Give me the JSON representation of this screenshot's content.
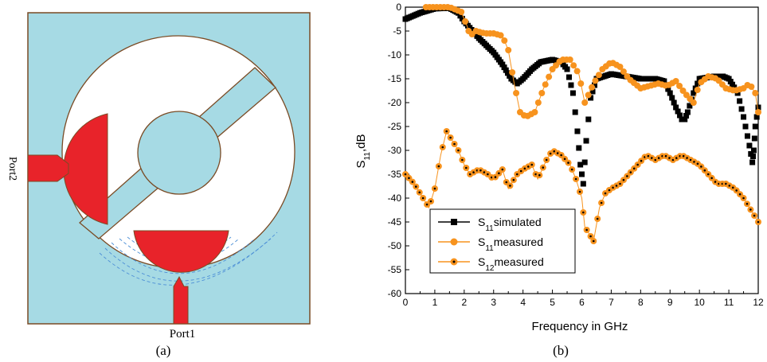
{
  "panel_a": {
    "caption": "(a)",
    "port1_label": "Port1",
    "port2_label": "Port2",
    "colors": {
      "substrate": "#a6dae4",
      "slot": "#ffffff",
      "patch": "#e8232a",
      "outline": "#7a4b25",
      "field_lines": "#4d8fd6"
    }
  },
  "panel_b": {
    "caption": "(b)"
  },
  "chart_data": {
    "type": "scatter",
    "xlabel": "Frequency in GHz",
    "ylabel": "S",
    "ylabel_sub": "11",
    "ylabel_suffix": ",dB",
    "xlim": [
      0,
      12
    ],
    "ylim": [
      -60,
      0
    ],
    "xticks": [
      0,
      1,
      2,
      3,
      4,
      5,
      6,
      7,
      8,
      9,
      10,
      11,
      12
    ],
    "yticks": [
      0,
      -5,
      -10,
      -15,
      -20,
      -25,
      -30,
      -35,
      -40,
      -45,
      -50,
      -55,
      -60
    ],
    "grid": false,
    "legend_position": "bottom-left",
    "series": [
      {
        "name": "S11simulated",
        "label_main": "S",
        "label_sub": "11",
        "label_rest": "simulated",
        "color": "#000000",
        "marker": "square",
        "line": false,
        "x": [
          0,
          0.5,
          1,
          1.5,
          1.8,
          2,
          2.5,
          3,
          3.3,
          3.6,
          3.8,
          4,
          4.3,
          4.6,
          5,
          5.3,
          5.5,
          5.7,
          5.85,
          5.95,
          6.05,
          6.15,
          6.3,
          6.5,
          7,
          7.5,
          8,
          8.5,
          8.8,
          9,
          9.2,
          9.4,
          9.5,
          9.6,
          9.8,
          10,
          10.5,
          10.8,
          11,
          11.3,
          11.5,
          11.7,
          11.8,
          11.85,
          11.9,
          12
        ],
        "y": [
          -2.5,
          -1.2,
          -0.3,
          -0.2,
          -1.2,
          -3,
          -6.5,
          -9.5,
          -12,
          -15,
          -16,
          -15,
          -13,
          -11.5,
          -11,
          -11.5,
          -13,
          -18,
          -26,
          -33,
          -37,
          -28,
          -19,
          -15,
          -14,
          -14.5,
          -15,
          -15,
          -15.5,
          -18,
          -21,
          -23.5,
          -23.5,
          -22,
          -18,
          -15,
          -14.5,
          -14.5,
          -15,
          -18,
          -23,
          -29,
          -32.5,
          -30,
          -25,
          -21
        ]
      },
      {
        "name": "S11measured",
        "label_main": "S",
        "label_sub": "11",
        "label_rest": "measured",
        "color": "#f7931e",
        "marker": "circle",
        "line": true,
        "x": [
          0.7,
          1,
          1.5,
          1.9,
          2.1,
          2.2,
          2.4,
          2.7,
          3,
          3.3,
          3.5,
          3.7,
          3.9,
          4.1,
          4.4,
          4.7,
          5,
          5.3,
          5.6,
          5.9,
          6.1,
          6.4,
          6.7,
          7,
          7.3,
          7.6,
          8,
          8.3,
          8.6,
          8.9,
          9.2,
          9.5,
          9.8,
          10,
          10.3,
          10.6,
          10.9,
          11.2,
          11.5,
          11.7,
          11.9,
          12
        ],
        "y": [
          0,
          0,
          0,
          -1,
          -4,
          -6,
          -5,
          -5.5,
          -5.5,
          -6,
          -9,
          -16,
          -22,
          -23,
          -22,
          -17,
          -13,
          -11,
          -11,
          -14,
          -20,
          -16,
          -13,
          -11.5,
          -12.5,
          -15,
          -17,
          -16.5,
          -16,
          -16.5,
          -15.5,
          -18,
          -20,
          -16,
          -14.5,
          -15,
          -17,
          -17.5,
          -17,
          -16,
          -18,
          -22
        ]
      },
      {
        "name": "S12measured",
        "label_main": "S",
        "label_sub": "12",
        "label_rest": "measured",
        "color": "#f7931e",
        "marker": "circle-dot",
        "line": true,
        "x": [
          0,
          0.3,
          0.6,
          0.8,
          1,
          1.2,
          1.4,
          1.6,
          1.8,
          2,
          2.2,
          2.5,
          2.8,
          3,
          3.3,
          3.5,
          3.8,
          4,
          4.3,
          4.5,
          4.8,
          5,
          5.3,
          5.6,
          5.8,
          6,
          6.1,
          6.3,
          6.4,
          6.6,
          6.8,
          7,
          7.3,
          7.6,
          7.9,
          8.2,
          8.5,
          8.8,
          9.1,
          9.4,
          9.7,
          10,
          10.3,
          10.6,
          10.9,
          11.2,
          11.5,
          11.8,
          12
        ],
        "y": [
          -35,
          -37,
          -40,
          -42,
          -38,
          -31,
          -26,
          -28,
          -30,
          -33,
          -35,
          -34,
          -35,
          -36,
          -34,
          -38,
          -35,
          -34,
          -33,
          -36,
          -32,
          -30,
          -31,
          -33,
          -36,
          -40,
          -46,
          -48,
          -49,
          -42,
          -39,
          -38,
          -37,
          -35,
          -33,
          -31,
          -32,
          -31,
          -32,
          -31,
          -32,
          -33,
          -35,
          -37,
          -37,
          -38,
          -40,
          -43,
          -45
        ]
      }
    ]
  }
}
